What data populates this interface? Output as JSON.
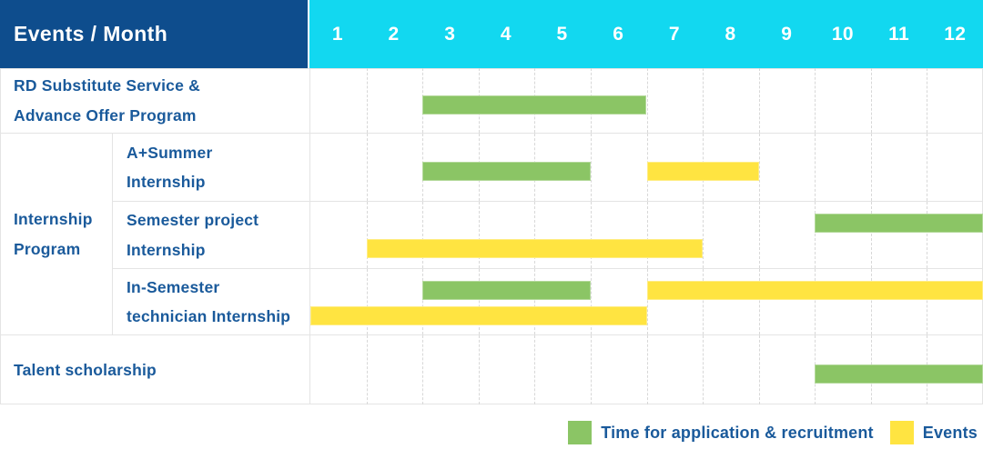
{
  "colors": {
    "header_bg": "#0e4d8d",
    "months_bg": "#12d8f0",
    "header_text": "#ffffff",
    "label_text": "#1a5a9b",
    "grid_line": "#e4e4e4",
    "grid_dash": "#d8d8d8"
  },
  "table": {
    "header_label": "Events / Month",
    "months": [
      "1",
      "2",
      "3",
      "4",
      "5",
      "6",
      "7",
      "8",
      "9",
      "10",
      "11",
      "12"
    ],
    "group_label_lines": [
      "Internship",
      "Program"
    ]
  },
  "chart_data": {
    "type": "gantt",
    "unit": "month",
    "x_ticks": [
      1,
      2,
      3,
      4,
      5,
      6,
      7,
      8,
      9,
      10,
      11,
      12
    ],
    "rows": [
      {
        "label": "RD Substitute Service & Advance Offer Program",
        "label_lines": [
          "RD Substitute Service &",
          "Advance Offer Program"
        ],
        "group": "",
        "tracks": 1,
        "bars": [
          {
            "type": "application",
            "start_month": 3,
            "end_month": 6,
            "track": 1
          }
        ]
      },
      {
        "label": "A+Summer Internship",
        "label_lines": [
          "A+Summer",
          "Internship"
        ],
        "group": "Internship Program",
        "tracks": 1,
        "bars": [
          {
            "type": "application",
            "start_month": 3,
            "end_month": 5,
            "track": 1
          },
          {
            "type": "events",
            "start_month": 7,
            "end_month": 8,
            "track": 1
          }
        ]
      },
      {
        "label": "Semester project Internship",
        "label_lines": [
          "Semester project",
          "Internship"
        ],
        "group": "Internship Program",
        "tracks": 2,
        "bars": [
          {
            "type": "application",
            "start_month": 10,
            "end_month": 12,
            "track": 1
          },
          {
            "type": "events",
            "start_month": 2,
            "end_month": 7,
            "track": 2
          }
        ]
      },
      {
        "label": "In-Semester technician Internship",
        "label_lines": [
          "In-Semester",
          "technician Internship"
        ],
        "group": "Internship Program",
        "tracks": 2,
        "bars": [
          {
            "type": "application",
            "start_month": 3,
            "end_month": 5,
            "track": 1
          },
          {
            "type": "events",
            "start_month": 7,
            "end_month": 12,
            "track": 1
          },
          {
            "type": "events",
            "start_month": 1,
            "end_month": 6,
            "track": 2
          }
        ]
      },
      {
        "label": "Talent scholarship",
        "label_lines": [
          "Talent scholarship"
        ],
        "group": "",
        "tracks": 1,
        "bars": [
          {
            "type": "application",
            "start_month": 10,
            "end_month": 12,
            "track": 1
          }
        ]
      }
    ],
    "legend": [
      {
        "type": "application",
        "label": "Time for application & recruitment",
        "color": "#8bc565"
      },
      {
        "type": "events",
        "label": "Events",
        "color": "#ffe441"
      }
    ]
  }
}
